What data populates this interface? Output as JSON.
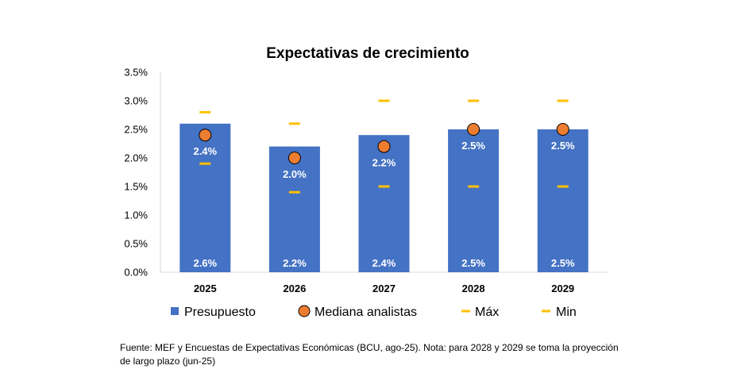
{
  "chart_data": {
    "type": "bar",
    "title": "Expectativas de crecimiento",
    "categories": [
      "2025",
      "2026",
      "2027",
      "2028",
      "2029"
    ],
    "ylim": [
      0,
      3.5
    ],
    "yticks": [
      "0.0%",
      "0.5%",
      "1.0%",
      "1.5%",
      "2.0%",
      "2.5%",
      "3.0%",
      "3.5%"
    ],
    "series": [
      {
        "name": "Presupuesto",
        "kind": "bar",
        "color": "#4472C4",
        "values": [
          2.6,
          2.2,
          2.4,
          2.5,
          2.5
        ],
        "labels": [
          "2.6%",
          "2.2%",
          "2.4%",
          "2.5%",
          "2.5%"
        ]
      },
      {
        "name": "Mediana analistas",
        "kind": "marker",
        "color": "#ED7D31",
        "values": [
          2.4,
          2.0,
          2.2,
          2.5,
          2.5
        ],
        "labels": [
          "2.4%",
          "2.0%",
          "2.2%",
          "2.5%",
          "2.5%"
        ]
      },
      {
        "name": "Máx",
        "kind": "dash",
        "color": "#FFC000",
        "values": [
          2.8,
          2.6,
          3.0,
          3.0,
          3.0
        ]
      },
      {
        "name": "Min",
        "kind": "dash",
        "color": "#FFC000",
        "values": [
          1.9,
          1.4,
          1.5,
          1.5,
          1.5
        ]
      }
    ],
    "legend": [
      "Presupuesto",
      "Mediana analistas",
      "Máx",
      "Min"
    ],
    "legend_position": "bottom",
    "grid": false
  },
  "source_note": "Fuente: MEF y Encuestas de Expectativas Económicas (BCU, ago-25). Nota: para 2028 y 2029 se toma la proyección de largo plazo (jun-25)"
}
